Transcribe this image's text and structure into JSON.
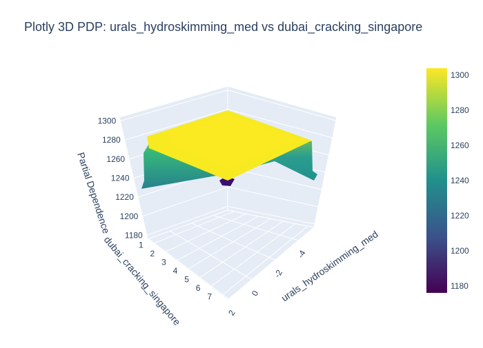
{
  "chart_data": {
    "type": "surface3d",
    "title": "Plotly 3D PDP: urals_hydroskimming_med vs dubai_cracking_singapore",
    "xlabel": "urals_hydroskimming_med",
    "ylabel": "dubai_cracking_singapore",
    "zlabel": "Partial Dependence",
    "x_ticks": [
      "-4",
      "-2",
      "0",
      "2"
    ],
    "y_ticks": [
      "1",
      "2",
      "3",
      "4",
      "5",
      "6",
      "7"
    ],
    "z_ticks": [
      "1180",
      "1200",
      "1220",
      "1240",
      "1260",
      "1280",
      "1300"
    ],
    "zlim": [
      1176,
      1304
    ],
    "colorscale": "Viridis",
    "colorbar": {
      "ticks": [
        "1180",
        "1200",
        "1220",
        "1240",
        "1260",
        "1280",
        "1300"
      ],
      "min": 1176,
      "max": 1304
    },
    "surface_summary": {
      "plateau_value": 1300,
      "low_edge_values": [
        1240,
        1235,
        1180
      ]
    },
    "colors": [
      "#440154",
      "#3b528b",
      "#21908d",
      "#5dc962",
      "#fde725"
    ]
  }
}
